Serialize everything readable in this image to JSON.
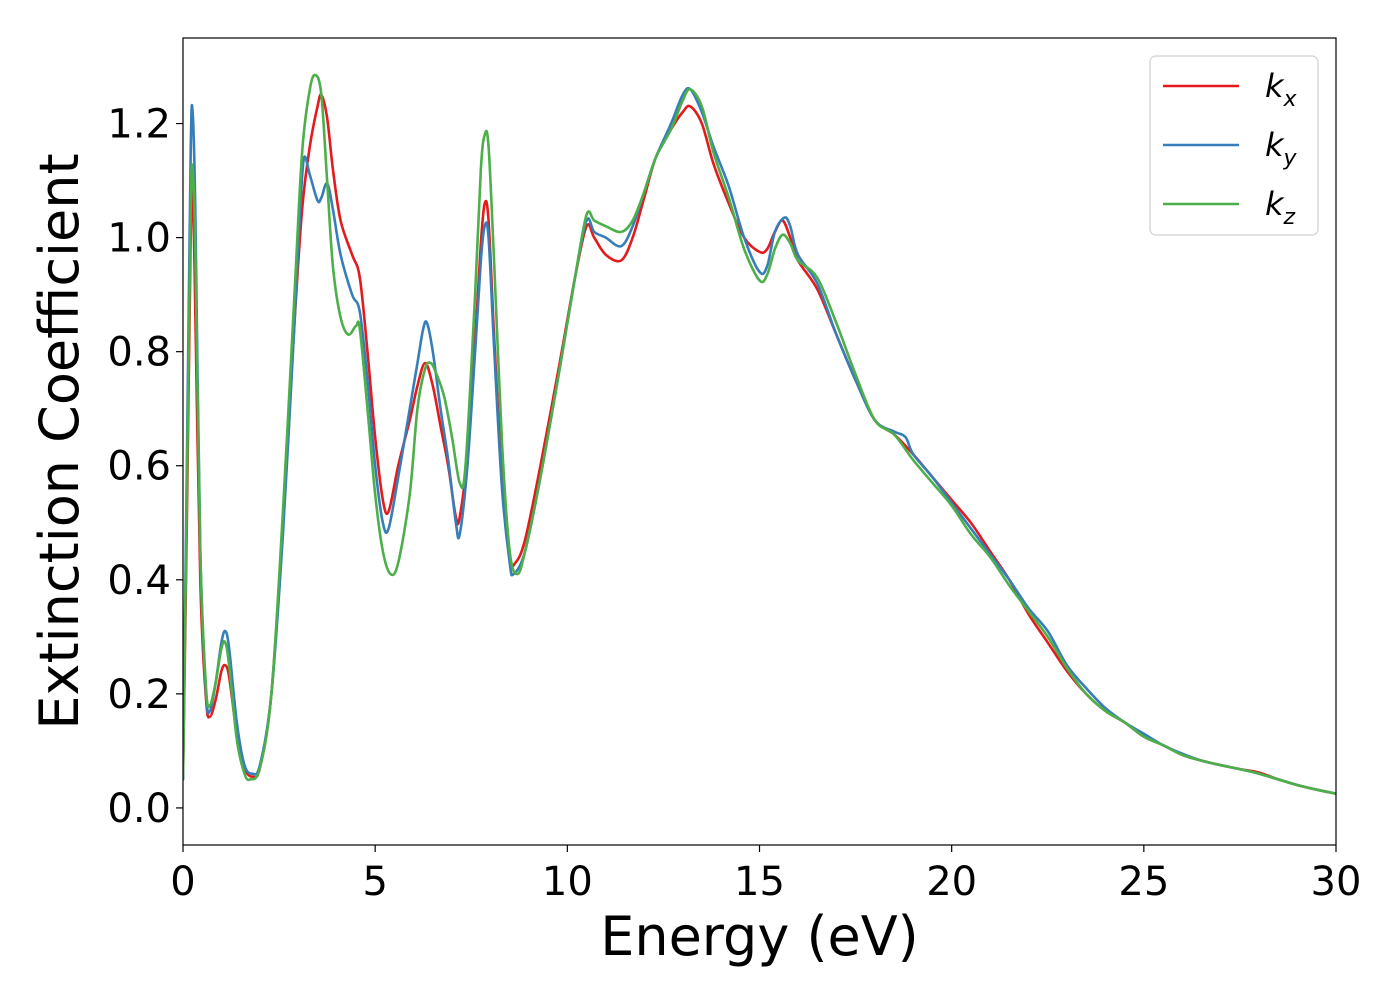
{
  "chart_data": {
    "type": "line",
    "title": "",
    "xlabel": "Energy (eV)",
    "ylabel": "Extinction Coefficient",
    "xlim": [
      0,
      30
    ],
    "ylim": [
      -0.065,
      1.35
    ],
    "xticks": [
      0,
      5,
      10,
      15,
      20,
      25,
      30
    ],
    "yticks": [
      0.0,
      0.2,
      0.4,
      0.6,
      0.8,
      1.0,
      1.2
    ],
    "grid": false,
    "legend_position": "top-right",
    "series": [
      {
        "name": "k",
        "subscript": "x",
        "color": "#e41a1c",
        "points": [
          [
            0,
            0.05
          ],
          [
            0.1,
            0.5
          ],
          [
            0.2,
            1.0
          ],
          [
            0.25,
            1.08
          ],
          [
            0.3,
            0.95
          ],
          [
            0.45,
            0.4
          ],
          [
            0.6,
            0.19
          ],
          [
            0.7,
            0.16
          ],
          [
            0.85,
            0.19
          ],
          [
            1.0,
            0.24
          ],
          [
            1.1,
            0.25
          ],
          [
            1.2,
            0.23
          ],
          [
            1.4,
            0.13
          ],
          [
            1.6,
            0.07
          ],
          [
            1.8,
            0.055
          ],
          [
            2.0,
            0.07
          ],
          [
            2.3,
            0.2
          ],
          [
            2.6,
            0.5
          ],
          [
            2.9,
            0.85
          ],
          [
            3.1,
            1.05
          ],
          [
            3.3,
            1.16
          ],
          [
            3.5,
            1.23
          ],
          [
            3.6,
            1.25
          ],
          [
            3.75,
            1.21
          ],
          [
            3.9,
            1.12
          ],
          [
            4.1,
            1.03
          ],
          [
            4.4,
            0.97
          ],
          [
            4.6,
            0.93
          ],
          [
            4.8,
            0.8
          ],
          [
            5.0,
            0.65
          ],
          [
            5.2,
            0.54
          ],
          [
            5.35,
            0.52
          ],
          [
            5.6,
            0.6
          ],
          [
            5.9,
            0.68
          ],
          [
            6.1,
            0.74
          ],
          [
            6.3,
            0.78
          ],
          [
            6.5,
            0.74
          ],
          [
            6.7,
            0.67
          ],
          [
            6.9,
            0.6
          ],
          [
            7.1,
            0.51
          ],
          [
            7.2,
            0.51
          ],
          [
            7.4,
            0.62
          ],
          [
            7.6,
            0.82
          ],
          [
            7.75,
            0.99
          ],
          [
            7.85,
            1.06
          ],
          [
            7.95,
            1.03
          ],
          [
            8.1,
            0.82
          ],
          [
            8.3,
            0.58
          ],
          [
            8.5,
            0.44
          ],
          [
            8.65,
            0.43
          ],
          [
            8.9,
            0.47
          ],
          [
            9.3,
            0.6
          ],
          [
            9.8,
            0.78
          ],
          [
            10.2,
            0.93
          ],
          [
            10.5,
            1.02
          ],
          [
            10.7,
            1.0
          ],
          [
            11.0,
            0.97
          ],
          [
            11.4,
            0.96
          ],
          [
            11.7,
            1.0
          ],
          [
            12.0,
            1.07
          ],
          [
            12.3,
            1.14
          ],
          [
            12.7,
            1.19
          ],
          [
            13.0,
            1.22
          ],
          [
            13.2,
            1.23
          ],
          [
            13.5,
            1.2
          ],
          [
            13.8,
            1.13
          ],
          [
            14.2,
            1.06
          ],
          [
            14.6,
            1.0
          ],
          [
            15.0,
            0.975
          ],
          [
            15.2,
            0.98
          ],
          [
            15.4,
            1.01
          ],
          [
            15.6,
            1.03
          ],
          [
            15.8,
            1.0
          ],
          [
            16.0,
            0.96
          ],
          [
            16.5,
            0.91
          ],
          [
            17.0,
            0.83
          ],
          [
            17.5,
            0.75
          ],
          [
            18.0,
            0.68
          ],
          [
            18.5,
            0.655
          ],
          [
            19.0,
            0.62
          ],
          [
            19.5,
            0.58
          ],
          [
            20.0,
            0.54
          ],
          [
            20.5,
            0.5
          ],
          [
            21.0,
            0.45
          ],
          [
            21.5,
            0.4
          ],
          [
            22.0,
            0.34
          ],
          [
            22.5,
            0.29
          ],
          [
            23.0,
            0.24
          ],
          [
            23.5,
            0.2
          ],
          [
            24.0,
            0.17
          ],
          [
            24.5,
            0.15
          ],
          [
            25.0,
            0.125
          ],
          [
            25.5,
            0.11
          ],
          [
            26.0,
            0.093
          ],
          [
            26.5,
            0.083
          ],
          [
            27.0,
            0.075
          ],
          [
            27.5,
            0.068
          ],
          [
            28.0,
            0.062
          ],
          [
            28.5,
            0.05
          ],
          [
            29.0,
            0.04
          ],
          [
            29.5,
            0.032
          ],
          [
            30.0,
            0.025
          ]
        ]
      },
      {
        "name": "k",
        "subscript": "y",
        "color": "#377eb8",
        "points": [
          [
            0,
            0.05
          ],
          [
            0.1,
            0.6
          ],
          [
            0.2,
            1.15
          ],
          [
            0.25,
            1.22
          ],
          [
            0.32,
            1.05
          ],
          [
            0.45,
            0.45
          ],
          [
            0.6,
            0.2
          ],
          [
            0.7,
            0.17
          ],
          [
            0.85,
            0.22
          ],
          [
            1.0,
            0.29
          ],
          [
            1.1,
            0.31
          ],
          [
            1.2,
            0.28
          ],
          [
            1.4,
            0.15
          ],
          [
            1.6,
            0.075
          ],
          [
            1.8,
            0.06
          ],
          [
            2.0,
            0.075
          ],
          [
            2.3,
            0.2
          ],
          [
            2.6,
            0.48
          ],
          [
            2.9,
            0.85
          ],
          [
            3.05,
            1.05
          ],
          [
            3.15,
            1.14
          ],
          [
            3.3,
            1.11
          ],
          [
            3.5,
            1.065
          ],
          [
            3.6,
            1.07
          ],
          [
            3.75,
            1.095
          ],
          [
            3.9,
            1.05
          ],
          [
            4.1,
            0.97
          ],
          [
            4.4,
            0.9
          ],
          [
            4.6,
            0.87
          ],
          [
            4.8,
            0.75
          ],
          [
            5.0,
            0.6
          ],
          [
            5.2,
            0.5
          ],
          [
            5.35,
            0.49
          ],
          [
            5.6,
            0.58
          ],
          [
            5.9,
            0.7
          ],
          [
            6.1,
            0.78
          ],
          [
            6.25,
            0.84
          ],
          [
            6.35,
            0.85
          ],
          [
            6.5,
            0.8
          ],
          [
            6.7,
            0.7
          ],
          [
            6.9,
            0.61
          ],
          [
            7.1,
            0.5
          ],
          [
            7.2,
            0.48
          ],
          [
            7.4,
            0.6
          ],
          [
            7.6,
            0.8
          ],
          [
            7.75,
            0.96
          ],
          [
            7.85,
            1.02
          ],
          [
            7.95,
            1.0
          ],
          [
            8.1,
            0.8
          ],
          [
            8.3,
            0.56
          ],
          [
            8.5,
            0.43
          ],
          [
            8.6,
            0.41
          ],
          [
            8.9,
            0.45
          ],
          [
            9.3,
            0.58
          ],
          [
            9.8,
            0.77
          ],
          [
            10.2,
            0.93
          ],
          [
            10.5,
            1.03
          ],
          [
            10.7,
            1.01
          ],
          [
            11.0,
            1.0
          ],
          [
            11.4,
            0.985
          ],
          [
            11.7,
            1.02
          ],
          [
            12.0,
            1.08
          ],
          [
            12.3,
            1.14
          ],
          [
            12.7,
            1.2
          ],
          [
            13.0,
            1.25
          ],
          [
            13.2,
            1.26
          ],
          [
            13.5,
            1.22
          ],
          [
            13.8,
            1.16
          ],
          [
            14.2,
            1.09
          ],
          [
            14.6,
            1.0
          ],
          [
            15.0,
            0.94
          ],
          [
            15.2,
            0.95
          ],
          [
            15.4,
            1.01
          ],
          [
            15.65,
            1.035
          ],
          [
            15.8,
            1.02
          ],
          [
            16.0,
            0.97
          ],
          [
            16.5,
            0.92
          ],
          [
            17.0,
            0.83
          ],
          [
            17.5,
            0.75
          ],
          [
            18.0,
            0.68
          ],
          [
            18.5,
            0.66
          ],
          [
            18.8,
            0.65
          ],
          [
            19.0,
            0.62
          ],
          [
            19.5,
            0.58
          ],
          [
            20.0,
            0.535
          ],
          [
            20.5,
            0.49
          ],
          [
            21.0,
            0.445
          ],
          [
            21.5,
            0.4
          ],
          [
            22.0,
            0.35
          ],
          [
            22.5,
            0.31
          ],
          [
            23.0,
            0.25
          ],
          [
            23.5,
            0.21
          ],
          [
            24.0,
            0.175
          ],
          [
            24.5,
            0.15
          ],
          [
            25.0,
            0.13
          ],
          [
            25.5,
            0.11
          ],
          [
            26.0,
            0.095
          ],
          [
            26.5,
            0.083
          ],
          [
            27.0,
            0.075
          ],
          [
            27.5,
            0.068
          ],
          [
            28.0,
            0.06
          ],
          [
            28.5,
            0.05
          ],
          [
            29.0,
            0.04
          ],
          [
            29.5,
            0.032
          ],
          [
            30.0,
            0.025
          ]
        ]
      },
      {
        "name": "k",
        "subscript": "z",
        "color": "#4daf4a",
        "points": [
          [
            0,
            0.05
          ],
          [
            0.1,
            0.55
          ],
          [
            0.2,
            1.05
          ],
          [
            0.25,
            1.12
          ],
          [
            0.32,
            0.98
          ],
          [
            0.45,
            0.45
          ],
          [
            0.6,
            0.21
          ],
          [
            0.7,
            0.18
          ],
          [
            0.85,
            0.22
          ],
          [
            1.0,
            0.28
          ],
          [
            1.1,
            0.29
          ],
          [
            1.2,
            0.25
          ],
          [
            1.4,
            0.12
          ],
          [
            1.6,
            0.06
          ],
          [
            1.75,
            0.05
          ],
          [
            2.0,
            0.07
          ],
          [
            2.3,
            0.2
          ],
          [
            2.6,
            0.52
          ],
          [
            2.9,
            0.9
          ],
          [
            3.1,
            1.15
          ],
          [
            3.3,
            1.26
          ],
          [
            3.45,
            1.285
          ],
          [
            3.6,
            1.25
          ],
          [
            3.75,
            1.1
          ],
          [
            3.9,
            0.95
          ],
          [
            4.1,
            0.86
          ],
          [
            4.3,
            0.83
          ],
          [
            4.5,
            0.845
          ],
          [
            4.6,
            0.84
          ],
          [
            4.8,
            0.7
          ],
          [
            5.0,
            0.55
          ],
          [
            5.2,
            0.45
          ],
          [
            5.4,
            0.41
          ],
          [
            5.6,
            0.43
          ],
          [
            5.9,
            0.55
          ],
          [
            6.1,
            0.7
          ],
          [
            6.3,
            0.77
          ],
          [
            6.45,
            0.78
          ],
          [
            6.6,
            0.76
          ],
          [
            6.8,
            0.72
          ],
          [
            7.0,
            0.65
          ],
          [
            7.2,
            0.57
          ],
          [
            7.35,
            0.6
          ],
          [
            7.6,
            0.9
          ],
          [
            7.75,
            1.12
          ],
          [
            7.85,
            1.18
          ],
          [
            7.95,
            1.16
          ],
          [
            8.1,
            0.95
          ],
          [
            8.3,
            0.64
          ],
          [
            8.5,
            0.45
          ],
          [
            8.7,
            0.41
          ],
          [
            8.9,
            0.45
          ],
          [
            9.3,
            0.58
          ],
          [
            9.8,
            0.77
          ],
          [
            10.2,
            0.93
          ],
          [
            10.5,
            1.04
          ],
          [
            10.7,
            1.03
          ],
          [
            11.0,
            1.02
          ],
          [
            11.4,
            1.01
          ],
          [
            11.7,
            1.03
          ],
          [
            12.0,
            1.08
          ],
          [
            12.3,
            1.14
          ],
          [
            12.7,
            1.19
          ],
          [
            13.0,
            1.24
          ],
          [
            13.2,
            1.26
          ],
          [
            13.5,
            1.23
          ],
          [
            13.8,
            1.15
          ],
          [
            14.2,
            1.07
          ],
          [
            14.6,
            0.98
          ],
          [
            15.0,
            0.925
          ],
          [
            15.2,
            0.935
          ],
          [
            15.4,
            0.98
          ],
          [
            15.6,
            1.005
          ],
          [
            15.8,
            0.99
          ],
          [
            16.0,
            0.96
          ],
          [
            16.5,
            0.93
          ],
          [
            17.0,
            0.85
          ],
          [
            17.5,
            0.76
          ],
          [
            18.0,
            0.68
          ],
          [
            18.5,
            0.655
          ],
          [
            19.0,
            0.61
          ],
          [
            19.5,
            0.57
          ],
          [
            20.0,
            0.53
          ],
          [
            20.5,
            0.48
          ],
          [
            21.0,
            0.44
          ],
          [
            21.5,
            0.39
          ],
          [
            22.0,
            0.345
          ],
          [
            22.5,
            0.3
          ],
          [
            23.0,
            0.245
          ],
          [
            23.5,
            0.2
          ],
          [
            24.0,
            0.17
          ],
          [
            24.5,
            0.15
          ],
          [
            25.0,
            0.125
          ],
          [
            25.5,
            0.11
          ],
          [
            26.0,
            0.093
          ],
          [
            26.5,
            0.083
          ],
          [
            27.0,
            0.075
          ],
          [
            27.5,
            0.068
          ],
          [
            28.0,
            0.06
          ],
          [
            28.5,
            0.05
          ],
          [
            29.0,
            0.04
          ],
          [
            29.5,
            0.032
          ],
          [
            30.0,
            0.025
          ]
        ]
      }
    ]
  }
}
